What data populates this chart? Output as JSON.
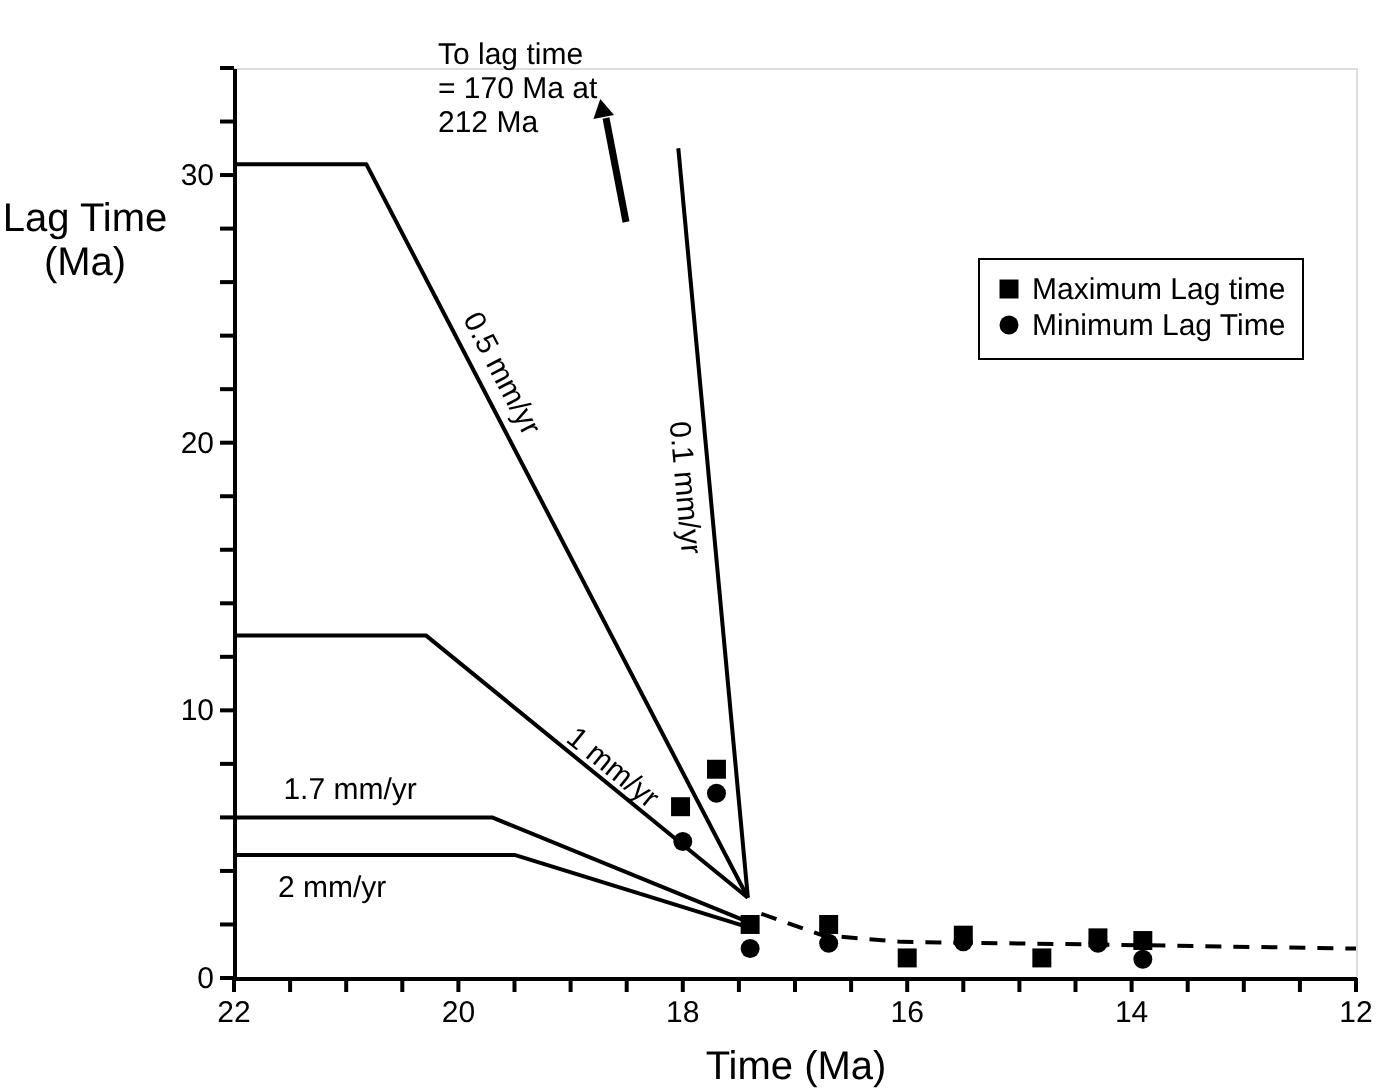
{
  "chart_data": {
    "type": "line",
    "xlabel": "Time (Ma)",
    "ylabel": "Lag Time (Ma)",
    "xlim": [
      22,
      12
    ],
    "ylim": [
      0,
      34
    ],
    "xticks": [
      22,
      {
        "value": 21.5,
        "label": null
      },
      {
        "value": 21,
        "label": null
      },
      {
        "value": 20.5,
        "label": null
      },
      20,
      {
        "value": 19.5,
        "label": null
      },
      {
        "value": 19,
        "label": null
      },
      {
        "value": 18.5,
        "label": null
      },
      18,
      {
        "value": 17.5,
        "label": null
      },
      {
        "value": 17,
        "label": null
      },
      {
        "value": 16.5,
        "label": null
      },
      16,
      {
        "value": 15.5,
        "label": null
      },
      {
        "value": 15,
        "label": null
      },
      {
        "value": 14.5,
        "label": null
      },
      14,
      {
        "value": 13.5,
        "label": null
      },
      {
        "value": 13,
        "label": null
      },
      {
        "value": 12.5,
        "label": null
      },
      12
    ],
    "yticks": [
      0,
      {
        "value": 2,
        "label": null
      },
      {
        "value": 4,
        "label": null
      },
      {
        "value": 6,
        "label": null
      },
      {
        "value": 8,
        "label": null
      },
      10,
      {
        "value": 12,
        "label": null
      },
      {
        "value": 14,
        "label": null
      },
      {
        "value": 16,
        "label": null
      },
      {
        "value": 18,
        "label": null
      },
      20,
      {
        "value": 22,
        "label": null
      },
      {
        "value": 24,
        "label": null
      },
      {
        "value": 26,
        "label": null
      },
      {
        "value": 28,
        "label": null
      },
      30,
      {
        "value": 32,
        "label": null
      },
      {
        "value": 34,
        "label": null
      }
    ],
    "grid": false,
    "legend": "top right",
    "annotations": [
      "To  lag time\n= 170 Ma at\n212 Ma"
    ],
    "series": [
      {
        "name": "0.5 mm/yr",
        "type": "line",
        "color": "#000000",
        "x": [
          22,
          20.82,
          17.42
        ],
        "values": [
          30.4,
          30.4,
          3.0
        ]
      },
      {
        "name": "1 mm/yr",
        "type": "line",
        "color": "#000000",
        "x": [
          22,
          20.29,
          17.42
        ],
        "values": [
          12.8,
          12.8,
          3.0
        ]
      },
      {
        "name": "1.7 mm/yr",
        "type": "line",
        "color": "#000000",
        "x": [
          22,
          19.7,
          17.42
        ],
        "values": [
          6.0,
          6.0,
          2.1
        ]
      },
      {
        "name": "2 mm/yr",
        "type": "line",
        "color": "#000000",
        "x": [
          22,
          19.5,
          17.42
        ],
        "values": [
          4.6,
          4.6,
          1.9
        ]
      },
      {
        "name": "0.1 mm/yr",
        "type": "line",
        "color": "#000000",
        "x": [
          18.04,
          17.42
        ],
        "values": [
          31.0,
          3.0
        ]
      },
      {
        "type": "line",
        "line_style": "dashed",
        "color": "#000000",
        "x": [
          17.3,
          16.76,
          16.05,
          14.62,
          12
        ],
        "values": [
          2.4,
          1.6,
          1.35,
          1.27,
          1.1
        ]
      },
      {
        "name": "Maximum Lag time",
        "type": "scatter",
        "marker": "square",
        "color": "#000000",
        "x": [
          18.02,
          17.7,
          17.4,
          16.7,
          16.0,
          15.5,
          14.8,
          14.3,
          13.9
        ],
        "values": [
          6.4,
          7.8,
          2.0,
          2.0,
          0.75,
          1.6,
          0.75,
          1.5,
          1.4
        ]
      },
      {
        "name": "Minimum Lag Time",
        "type": "scatter",
        "marker": "circle",
        "color": "#000000",
        "x": [
          18.0,
          17.7,
          17.4,
          16.7,
          15.5,
          14.3,
          13.9
        ],
        "values": [
          5.1,
          6.9,
          1.1,
          1.3,
          1.35,
          1.3,
          0.7
        ]
      }
    ]
  }
}
